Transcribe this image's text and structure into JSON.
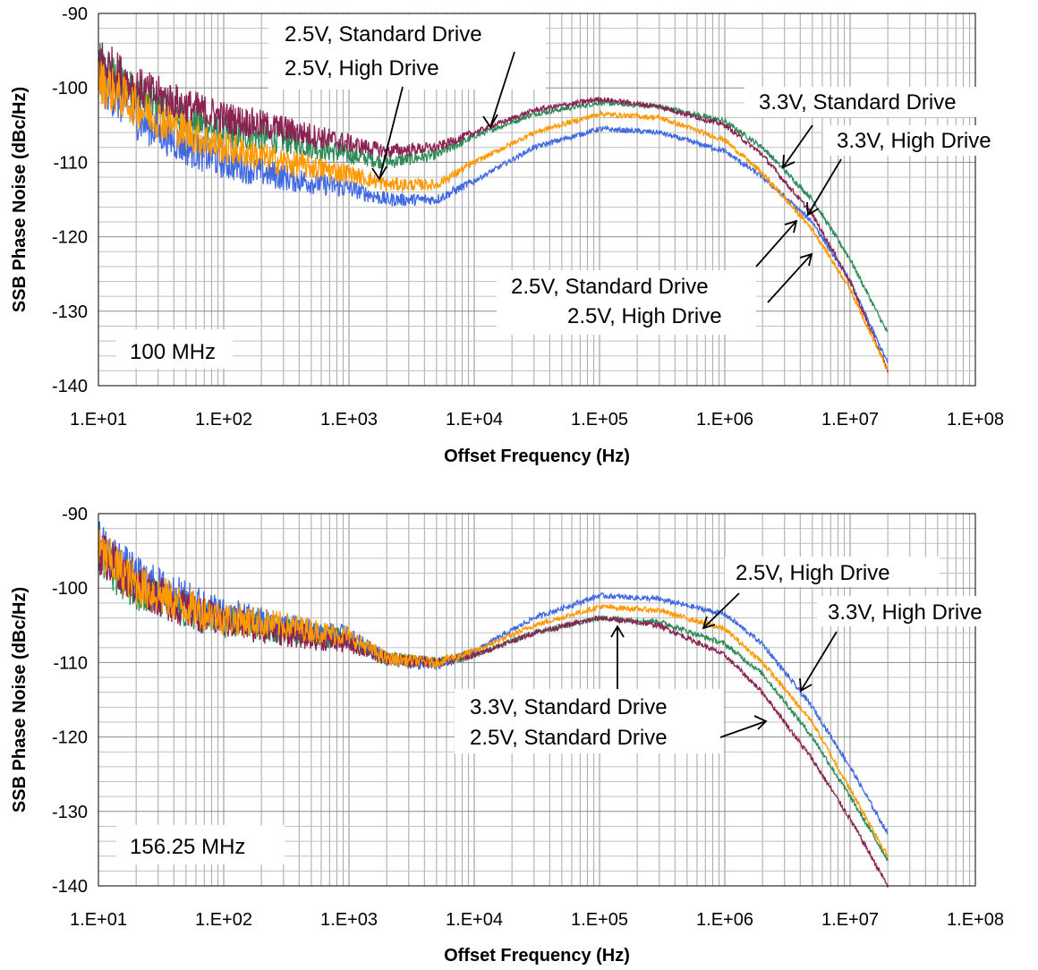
{
  "chart_data": [
    {
      "type": "line",
      "annotation_freq": "100 MHz",
      "xlabel": "Offset Frequency (Hz)",
      "ylabel": "SSB Phase  Noise (dBc/Hz)",
      "x_scale": "log",
      "xlim": [
        10,
        100000000
      ],
      "ylim": [
        -140,
        -90
      ],
      "x_tick_labels": [
        "1.E+01",
        "1.E+02",
        "1.E+03",
        "1.E+04",
        "1.E+05",
        "1.E+06",
        "1.E+07",
        "1.E+08"
      ],
      "y_tick_labels": [
        "-90",
        "-100",
        "-110",
        "-120",
        "-130",
        "-140"
      ],
      "grid": true,
      "series": [
        {
          "name": "3.3V, Standard Drive",
          "color": "#2E8B57",
          "x": [
            10,
            20,
            50,
            100,
            300,
            1000,
            2000,
            5000,
            10000,
            30000,
            100000,
            300000,
            1000000,
            2000000,
            5000000,
            10000000,
            20000000
          ],
          "y": [
            -97,
            -101,
            -104,
            -106,
            -107,
            -109,
            -110,
            -109,
            -106.5,
            -103.5,
            -102,
            -102.5,
            -104.5,
            -108,
            -115,
            -123,
            -133
          ]
        },
        {
          "name": "3.3V, High Drive",
          "color": "#4169E1",
          "x": [
            10,
            20,
            50,
            100,
            300,
            1000,
            2000,
            5000,
            10000,
            30000,
            100000,
            300000,
            1000000,
            2000000,
            5000000,
            10000000,
            20000000
          ],
          "y": [
            -99,
            -104,
            -108,
            -110,
            -112,
            -113.5,
            -115,
            -115,
            -112.5,
            -108,
            -105.5,
            -106,
            -108.5,
            -112,
            -118,
            -126,
            -137
          ]
        },
        {
          "name": "2.5V, Standard Drive",
          "color": "#8B2252",
          "x": [
            10,
            20,
            50,
            100,
            300,
            1000,
            2000,
            5000,
            10000,
            30000,
            100000,
            300000,
            1000000,
            2000000,
            5000000,
            10000000,
            20000000
          ],
          "y": [
            -96,
            -100,
            -102.5,
            -104,
            -105.5,
            -107.5,
            -108.5,
            -108,
            -106,
            -103,
            -101.5,
            -102.5,
            -105,
            -109,
            -117,
            -126,
            -138
          ]
        },
        {
          "name": "2.5V, High Drive",
          "color": "#FF9900",
          "x": [
            10,
            20,
            50,
            100,
            300,
            1000,
            2000,
            5000,
            10000,
            30000,
            100000,
            300000,
            1000000,
            2000000,
            5000000,
            10000000,
            20000000
          ],
          "y": [
            -99,
            -102.5,
            -106,
            -108,
            -110,
            -111.5,
            -113,
            -113,
            -110,
            -106,
            -103.5,
            -104,
            -107,
            -111.5,
            -119,
            -127,
            -138
          ]
        }
      ],
      "annotations": [
        "2.5V, Standard Drive",
        "2.5V, High Drive",
        "3.3V, Standard Drive",
        "3.3V, High Drive",
        "2.5V, Standard Drive",
        "2.5V, High Drive"
      ]
    },
    {
      "type": "line",
      "annotation_freq": "156.25 MHz",
      "xlabel": "Offset Frequency (Hz)",
      "ylabel": "SSB Phase  Noise (dBc/Hz)",
      "x_scale": "log",
      "xlim": [
        10,
        100000000
      ],
      "ylim": [
        -140,
        -90
      ],
      "x_tick_labels": [
        "1.E+01",
        "1.E+02",
        "1.E+03",
        "1.E+04",
        "1.E+05",
        "1.E+06",
        "1.E+07",
        "1.E+08"
      ],
      "y_tick_labels": [
        "-90",
        "-100",
        "-110",
        "-120",
        "-130",
        "-140"
      ],
      "grid": true,
      "series": [
        {
          "name": "3.3V, Standard Drive",
          "color": "#2E8B57",
          "x": [
            10,
            20,
            50,
            100,
            300,
            1000,
            2000,
            5000,
            10000,
            30000,
            100000,
            300000,
            1000000,
            2000000,
            5000000,
            10000000,
            20000000
          ],
          "y": [
            -96,
            -100,
            -103,
            -104.5,
            -105.5,
            -107,
            -109.5,
            -110,
            -109,
            -106,
            -104,
            -104.5,
            -107.5,
            -111.5,
            -120,
            -128,
            -136.5
          ]
        },
        {
          "name": "3.3V, High Drive",
          "color": "#4169E1",
          "x": [
            10,
            20,
            50,
            100,
            300,
            1000,
            2000,
            5000,
            10000,
            30000,
            100000,
            300000,
            1000000,
            2000000,
            5000000,
            10000000,
            20000000
          ],
          "y": [
            -94,
            -98.5,
            -101.5,
            -103.5,
            -105,
            -106.5,
            -109.5,
            -110.5,
            -108.5,
            -104,
            -101,
            -101.5,
            -103.5,
            -107.5,
            -116,
            -124,
            -133
          ]
        },
        {
          "name": "2.5V, Standard Drive",
          "color": "#8B2252",
          "x": [
            10,
            20,
            50,
            100,
            300,
            1000,
            2000,
            5000,
            10000,
            30000,
            100000,
            300000,
            1000000,
            2000000,
            5000000,
            10000000,
            20000000
          ],
          "y": [
            -95,
            -99.5,
            -103,
            -104.5,
            -106,
            -107.5,
            -109.5,
            -110,
            -109,
            -106,
            -104,
            -105,
            -109,
            -114,
            -123,
            -131,
            -140
          ]
        },
        {
          "name": "2.5V, High Drive",
          "color": "#FF9900",
          "x": [
            10,
            20,
            50,
            100,
            300,
            1000,
            2000,
            5000,
            10000,
            30000,
            100000,
            300000,
            1000000,
            2000000,
            5000000,
            10000000,
            20000000
          ],
          "y": [
            -95,
            -99.5,
            -102.5,
            -104,
            -105,
            -106.5,
            -109.5,
            -110,
            -108.5,
            -105,
            -102.5,
            -103,
            -105.5,
            -110,
            -118,
            -127,
            -136
          ]
        }
      ],
      "annotations": [
        "2.5V, High Drive",
        "3.3V, High Drive",
        "3.3V, Standard Drive",
        "2.5V, Standard Drive"
      ]
    }
  ]
}
